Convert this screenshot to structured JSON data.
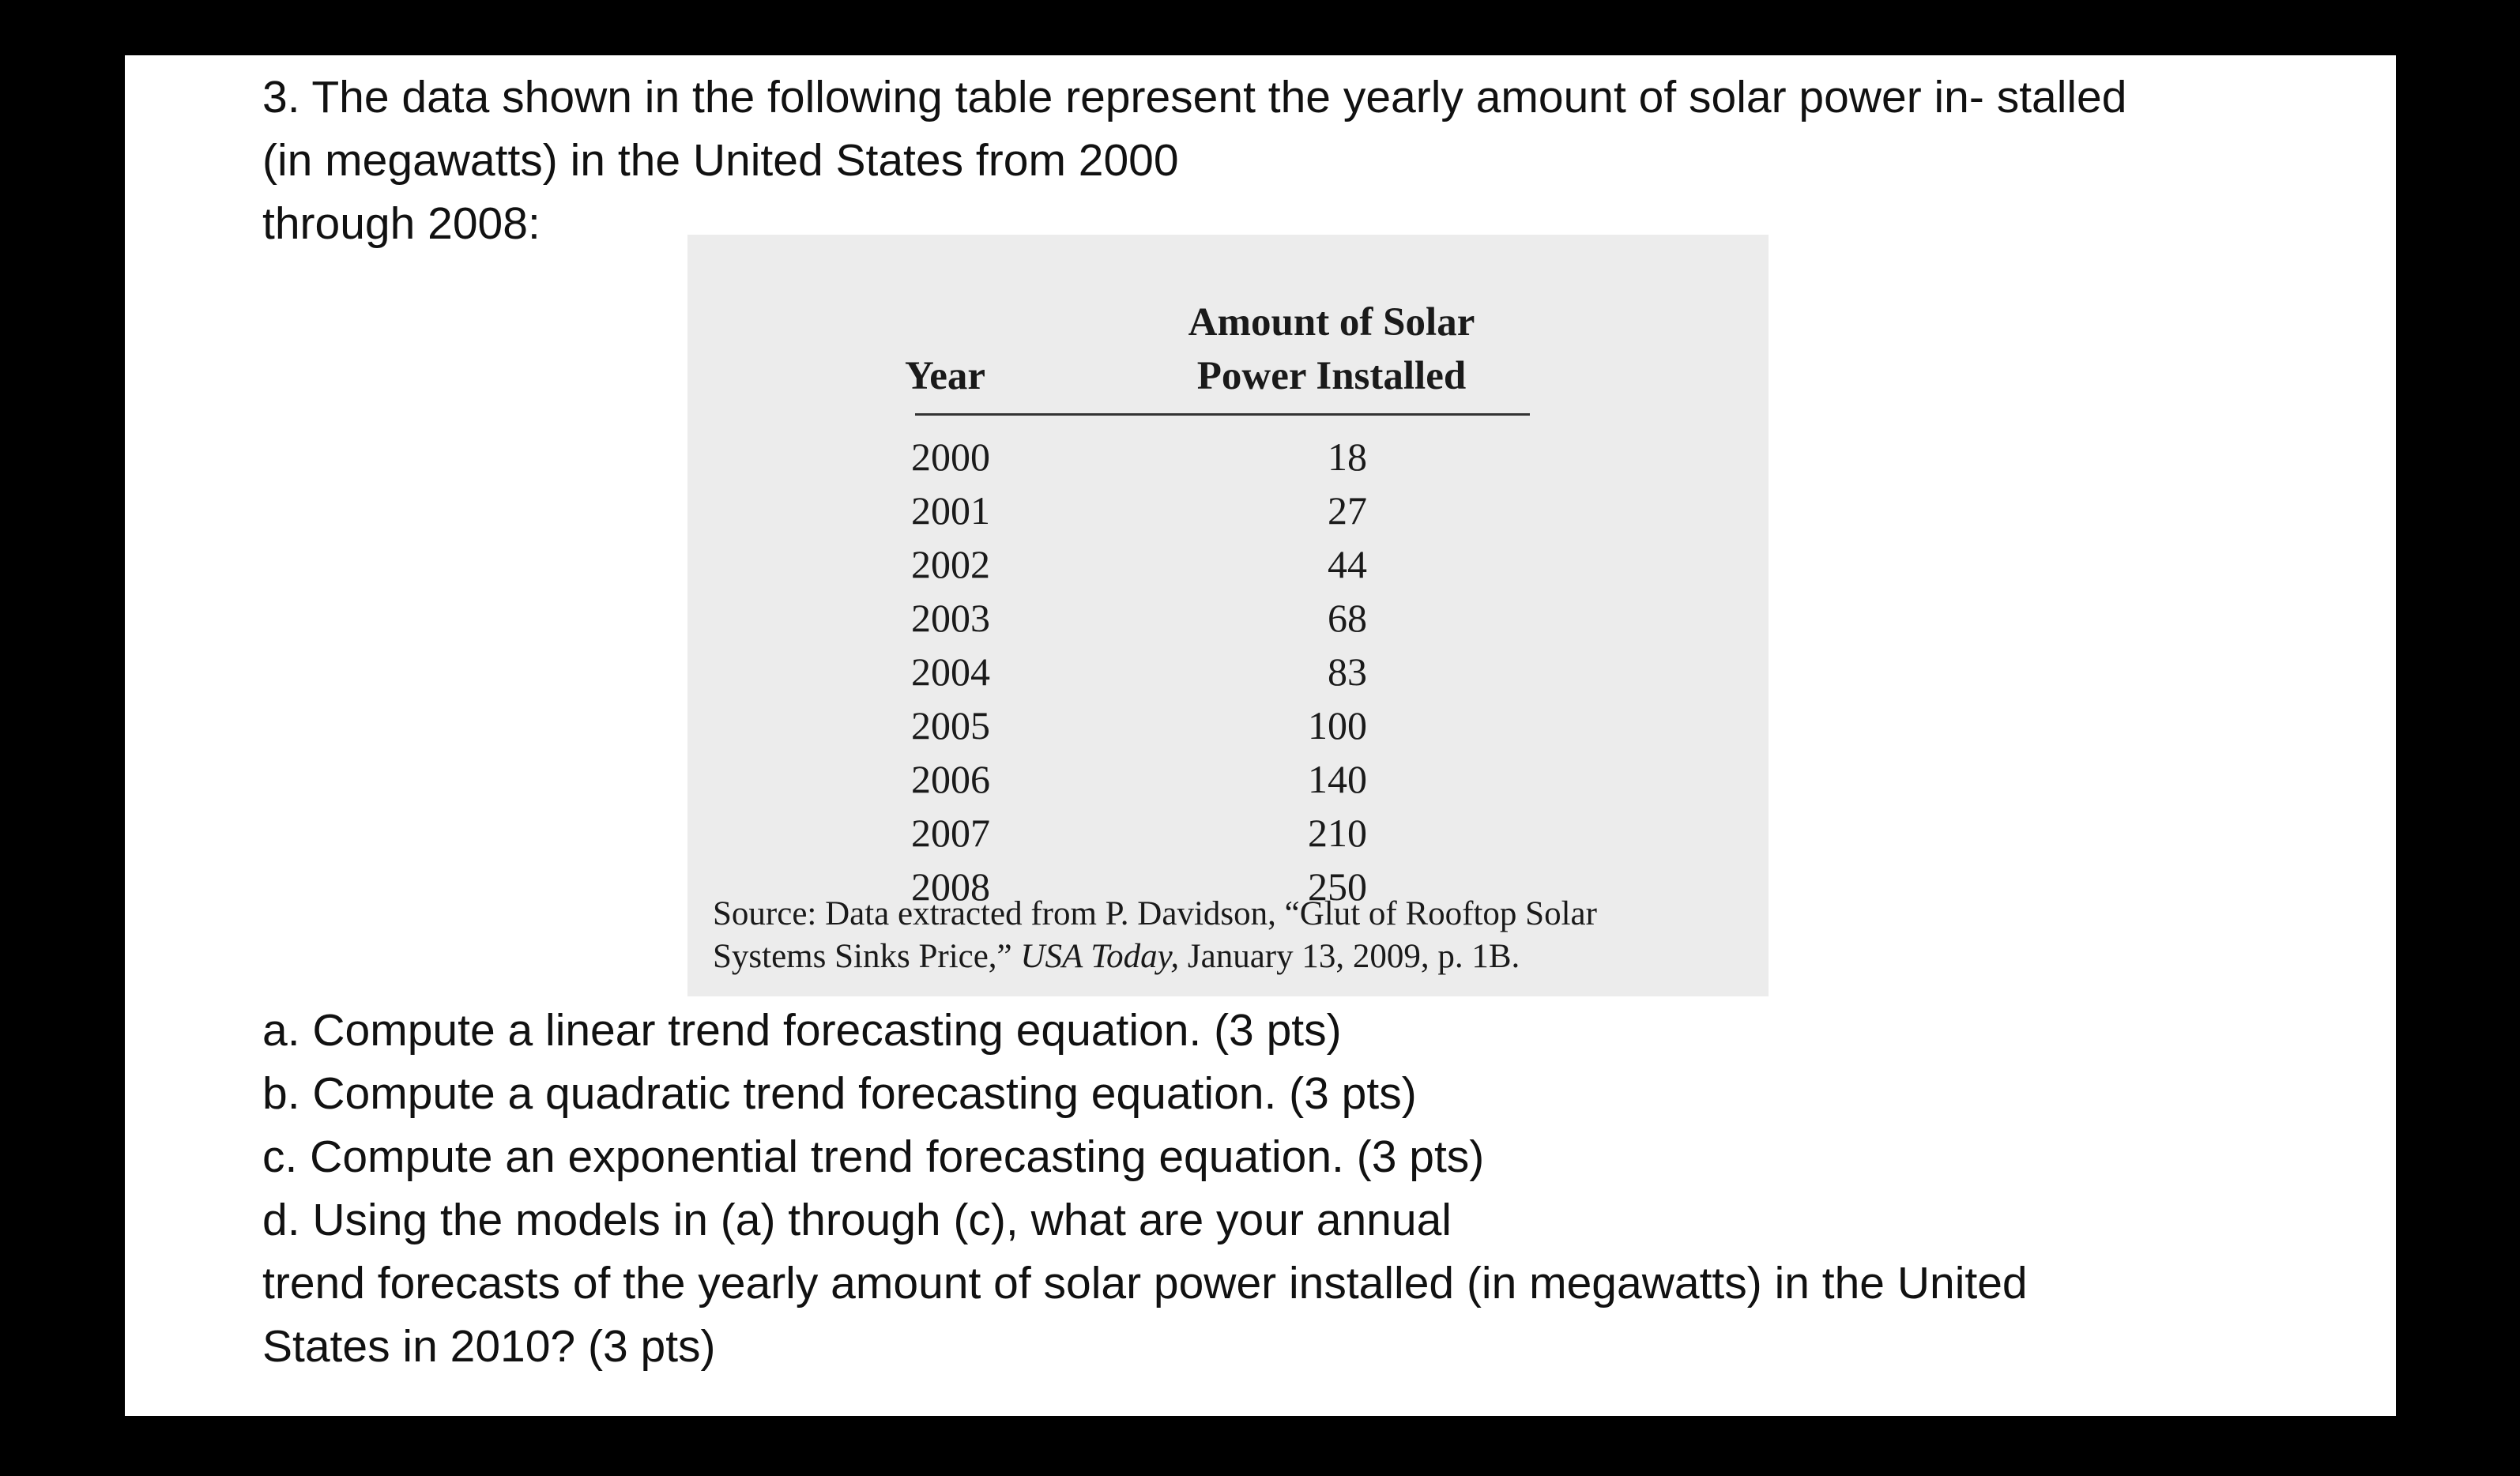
{
  "intro": {
    "line1": "3. The data shown in the following table represent the yearly amount of solar power in- stalled",
    "line2": "(in megawatts) in the United States from 2000",
    "line3": "through 2008:"
  },
  "table": {
    "col_year_header": "Year",
    "col_amount_header_line1": "Amount of Solar",
    "col_amount_header_line2": "Power Installed",
    "rows": [
      {
        "year": "2000",
        "value": "18"
      },
      {
        "year": "2001",
        "value": "27"
      },
      {
        "year": "2002",
        "value": "44"
      },
      {
        "year": "2003",
        "value": "68"
      },
      {
        "year": "2004",
        "value": "83"
      },
      {
        "year": "2005",
        "value": "100"
      },
      {
        "year": "2006",
        "value": "140"
      },
      {
        "year": "2007",
        "value": "210"
      },
      {
        "year": "2008",
        "value": "250"
      }
    ],
    "source": {
      "line1": "Source: Data extracted from P. Davidson, “Glut of Rooftop Solar",
      "line2_prefix": "Systems Sinks Price,” ",
      "line2_italic": "USA Today,",
      "line2_suffix": " January 13, 2009, p. 1B."
    }
  },
  "questions": {
    "a": "a. Compute a linear trend forecasting equation. (3 pts)",
    "b": "b. Compute a quadratic trend forecasting equation. (3 pts)",
    "c": "c. Compute an exponential trend forecasting equation. (3 pts)",
    "d_line1": "d. Using the models in (a) through (c), what are your annual",
    "d_line2": "trend forecasts of the yearly amount of solar power installed (in megawatts) in the United",
    "d_line3": "States in 2010? (3 pts)"
  }
}
